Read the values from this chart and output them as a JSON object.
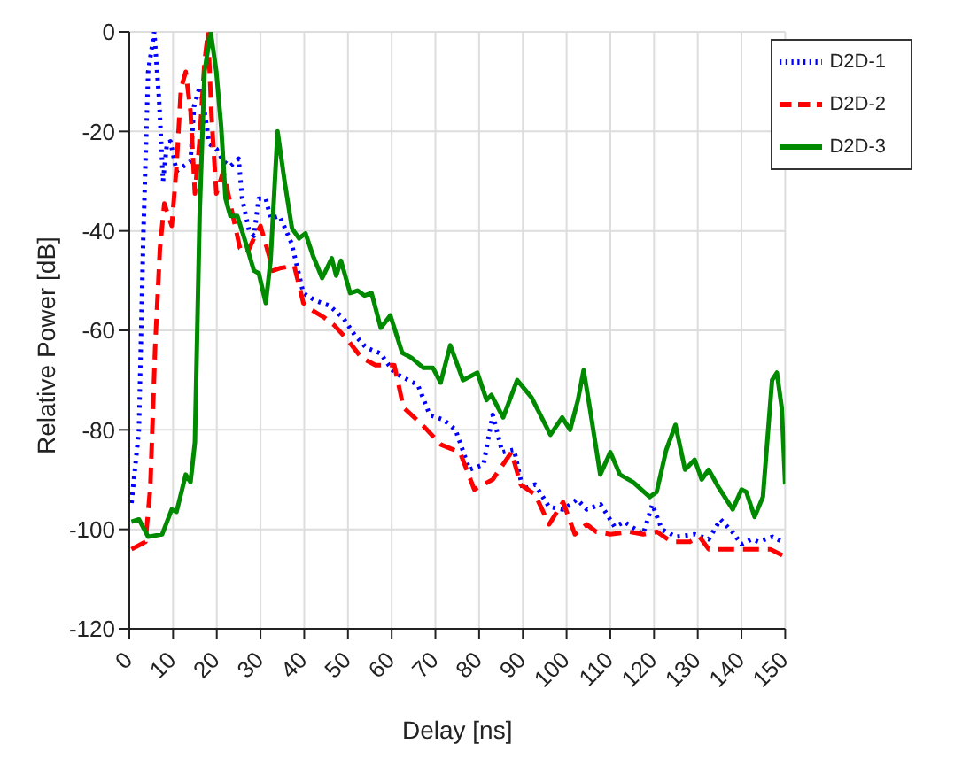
{
  "chart_data": {
    "type": "line",
    "xlabel": "Delay [ns]",
    "ylabel": "Relative Power [dB]",
    "xlim": [
      0,
      150
    ],
    "xticks": [
      0,
      10,
      20,
      30,
      40,
      50,
      60,
      70,
      80,
      90,
      100,
      110,
      120,
      130,
      140,
      150
    ],
    "ylim": [
      -120,
      0
    ],
    "yticks": [
      -120,
      -100,
      -80,
      -60,
      -40,
      -20,
      0
    ],
    "grid": true,
    "legend": "top right",
    "marker": "none",
    "series": [
      {
        "name": "D2D-1",
        "color": "#0000ff",
        "line_style": "dotted",
        "x": [
          0.5,
          2.2,
          3.2,
          4.3,
          5.7,
          6.8,
          7.7,
          8.6,
          9.4,
          10.8,
          12.4,
          14,
          14.8,
          16.1,
          17.2,
          18.3,
          19.9,
          21.5,
          23.1,
          25,
          25.8,
          27.4,
          28.5,
          29.6,
          31.2,
          32.3,
          34.4,
          37.1,
          39.8,
          42.5,
          45.7,
          48.9,
          51.6,
          54.2,
          57.4,
          60.6,
          66,
          68.7,
          71.9,
          74.6,
          77.8,
          81,
          83.1,
          85.3,
          88,
          90,
          92.8,
          96,
          99.2,
          102.4,
          104.6,
          107.8,
          111,
          113.2,
          117.5,
          119.6,
          121.8,
          125,
          129.3,
          132.5,
          135.2,
          137.9,
          140,
          142.3,
          143.9,
          147.1,
          149.3
        ],
        "values": [
          -94.7,
          -80,
          -41,
          -8,
          0,
          -13.5,
          -30,
          -22.5,
          -22,
          -28,
          -27,
          -26,
          -15,
          -11,
          -16,
          -22.5,
          -23.5,
          -26,
          -27,
          -25.5,
          -33.5,
          -40,
          -41,
          -33.5,
          -33.5,
          -37.5,
          -37,
          -42.5,
          -52.5,
          -54,
          -55,
          -57.5,
          -61,
          -63.5,
          -64.6,
          -68.5,
          -71,
          -77,
          -78,
          -80,
          -88,
          -87,
          -77,
          -84.5,
          -84,
          -92,
          -91,
          -95.5,
          -96,
          -94,
          -96,
          -95,
          -99.5,
          -98.5,
          -101,
          -95,
          -100,
          -101.5,
          -101,
          -102,
          -98,
          -100.5,
          -103,
          -102,
          -102.5,
          -101.5,
          -102.5
        ]
      },
      {
        "name": "D2D-2",
        "color": "#ff0000",
        "line_style": "dashed",
        "x": [
          0.5,
          3.7,
          4.8,
          5.9,
          7,
          8,
          9.7,
          10.8,
          11.8,
          12.9,
          14,
          15,
          16,
          17.2,
          18,
          18.8,
          19.9,
          21.5,
          23.7,
          25.3,
          26.9,
          28.5,
          30,
          31.8,
          32.8,
          34.4,
          37.7,
          39.8,
          41.5,
          44.7,
          46.9,
          50,
          53.1,
          56.3,
          60.6,
          62.7,
          67,
          71.3,
          75.6,
          78.9,
          83.1,
          87.4,
          89.5,
          92.8,
          96,
          99.2,
          101.9,
          104.6,
          106.8,
          110,
          114.3,
          117.5,
          120.7,
          124,
          128.2,
          130.4,
          132.5,
          134.7,
          139,
          142.3,
          146.6,
          150
        ],
        "values": [
          -104,
          -102.5,
          -91.5,
          -63.5,
          -43.5,
          -34.5,
          -39,
          -27,
          -11.5,
          -8,
          -16,
          -32.5,
          -22.5,
          -6,
          0,
          -17,
          -32.5,
          -28,
          -37,
          -43.5,
          -44.5,
          -41.5,
          -39,
          -44.5,
          -48,
          -47.5,
          -47,
          -54.5,
          -55.8,
          -57.5,
          -59,
          -62,
          -65.5,
          -67,
          -67,
          -75.5,
          -79,
          -83,
          -84.5,
          -92,
          -90,
          -84.5,
          -91,
          -93,
          -99,
          -94.5,
          -101,
          -99,
          -100.5,
          -101,
          -100.5,
          -101,
          -100.5,
          -102.5,
          -102.5,
          -101.5,
          -104,
          -104,
          -104,
          -104,
          -104,
          -105.5
        ]
      },
      {
        "name": "D2D-3",
        "color": "#008a00",
        "line_style": "solid",
        "x": [
          0.5,
          2.2,
          4.3,
          7.5,
          9.7,
          10.8,
          12.9,
          14,
          15,
          16.1,
          17.2,
          18.6,
          19.9,
          21,
          22,
          23.1,
          24.7,
          26.3,
          28.5,
          29.6,
          31.2,
          32.3,
          33.9,
          35.5,
          37.2,
          38.8,
          40.3,
          42,
          44.1,
          46.3,
          47.3,
          48.4,
          50.5,
          52.2,
          53.8,
          55.4,
          57.5,
          59.7,
          62.4,
          64.5,
          67.2,
          69.4,
          71.2,
          73.4,
          76.3,
          79.6,
          81.7,
          82.8,
          85.5,
          88.7,
          92,
          96.3,
          99,
          100.8,
          102.6,
          103.9,
          105.3,
          107.7,
          110,
          112.2,
          115.2,
          119,
          120.6,
          122.8,
          124.9,
          127.1,
          129.3,
          130.9,
          132.5,
          134.7,
          138,
          140,
          141.1,
          143,
          144.9,
          147,
          148.1,
          149.2,
          150
        ],
        "values": [
          -98.5,
          -98,
          -101.5,
          -101,
          -96,
          -96.5,
          -89,
          -90.5,
          -82.5,
          -36,
          -8,
          0,
          -8,
          -19,
          -33.5,
          -37,
          -37,
          -41.5,
          -48,
          -48.5,
          -54.5,
          -46,
          -20,
          -30,
          -39.5,
          -41.5,
          -40.5,
          -45,
          -49.5,
          -45.5,
          -49,
          -46,
          -52.5,
          -52,
          -53,
          -52.5,
          -59.5,
          -57,
          -64.5,
          -65.5,
          -67.5,
          -67.5,
          -70.5,
          -63,
          -70,
          -68.5,
          -74,
          -73,
          -77.5,
          -70,
          -73.5,
          -81,
          -77.5,
          -80,
          -74,
          -68,
          -75.5,
          -89,
          -84.5,
          -89,
          -90.5,
          -93.5,
          -92.5,
          -84,
          -79,
          -88,
          -86,
          -90,
          -88,
          -91.5,
          -96,
          -92,
          -92.5,
          -97.5,
          -93.5,
          -70,
          -68.5,
          -75.5,
          -91
        ]
      }
    ]
  }
}
